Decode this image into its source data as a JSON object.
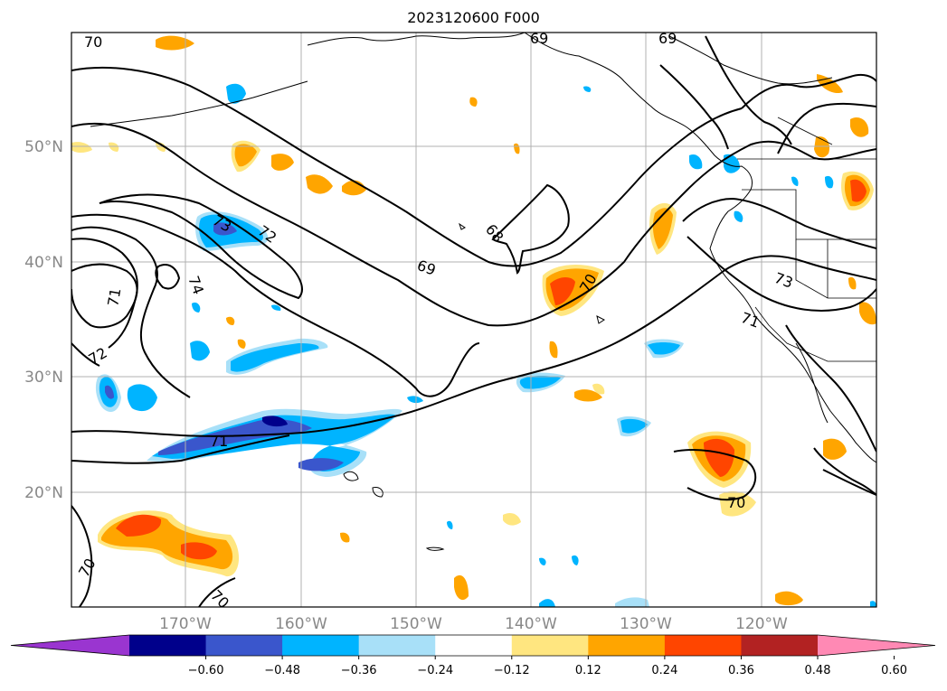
{
  "title": "2023120600 F000",
  "map": {
    "lat_labels": [
      "50°N",
      "40°N",
      "30°N",
      "20°N"
    ],
    "lon_labels": [
      "170°W",
      "160°W",
      "150°W",
      "140°W",
      "130°W",
      "120°W"
    ],
    "contour_labels": [
      "70",
      "73",
      "72",
      "74",
      "71",
      "72",
      "71",
      "69",
      "68",
      "69",
      "70",
      "73",
      "71",
      "70",
      "70",
      "70",
      "69"
    ]
  },
  "colorbar": {
    "ticks": [
      "−0.60",
      "−0.48",
      "−0.36",
      "−0.24",
      "−0.12",
      "0.12",
      "0.24",
      "0.36",
      "0.48",
      "0.60"
    ],
    "colors": [
      "#9a35d0",
      "#00008b",
      "#3a56cc",
      "#00b4ff",
      "#a8e0f8",
      "#ffffff",
      "#ffe680",
      "#ffa500",
      "#ff4500",
      "#b22222",
      "#ff89b4"
    ]
  },
  "colors": {
    "land_outline": "#000000",
    "grid": "#b0b0b0",
    "contour": "#000000"
  }
}
